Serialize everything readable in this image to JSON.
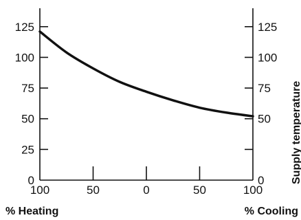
{
  "chart_data": {
    "type": "line",
    "title": "",
    "xlabel_left": "% Heating",
    "xlabel_right": "% Cooling",
    "ylabel_right": "Supply temperature",
    "x_tick_labels": [
      "100",
      "50",
      "0",
      "50",
      "100"
    ],
    "y_ticks": [
      0,
      25,
      50,
      75,
      100,
      125
    ],
    "y_tick_labels_left": [
      "0",
      "25",
      "50",
      "75",
      "100",
      "125"
    ],
    "y_tick_labels_right": [
      "0",
      "",
      "50",
      "75",
      "100",
      "125"
    ],
    "ylim": [
      0,
      140
    ],
    "grid": false,
    "series": [
      {
        "x": [
          -100,
          -75,
          -50,
          -25,
          0,
          25,
          50,
          75,
          100
        ],
        "y": [
          121,
          104,
          91,
          80,
          72,
          65,
          59,
          55,
          52
        ]
      }
    ]
  }
}
